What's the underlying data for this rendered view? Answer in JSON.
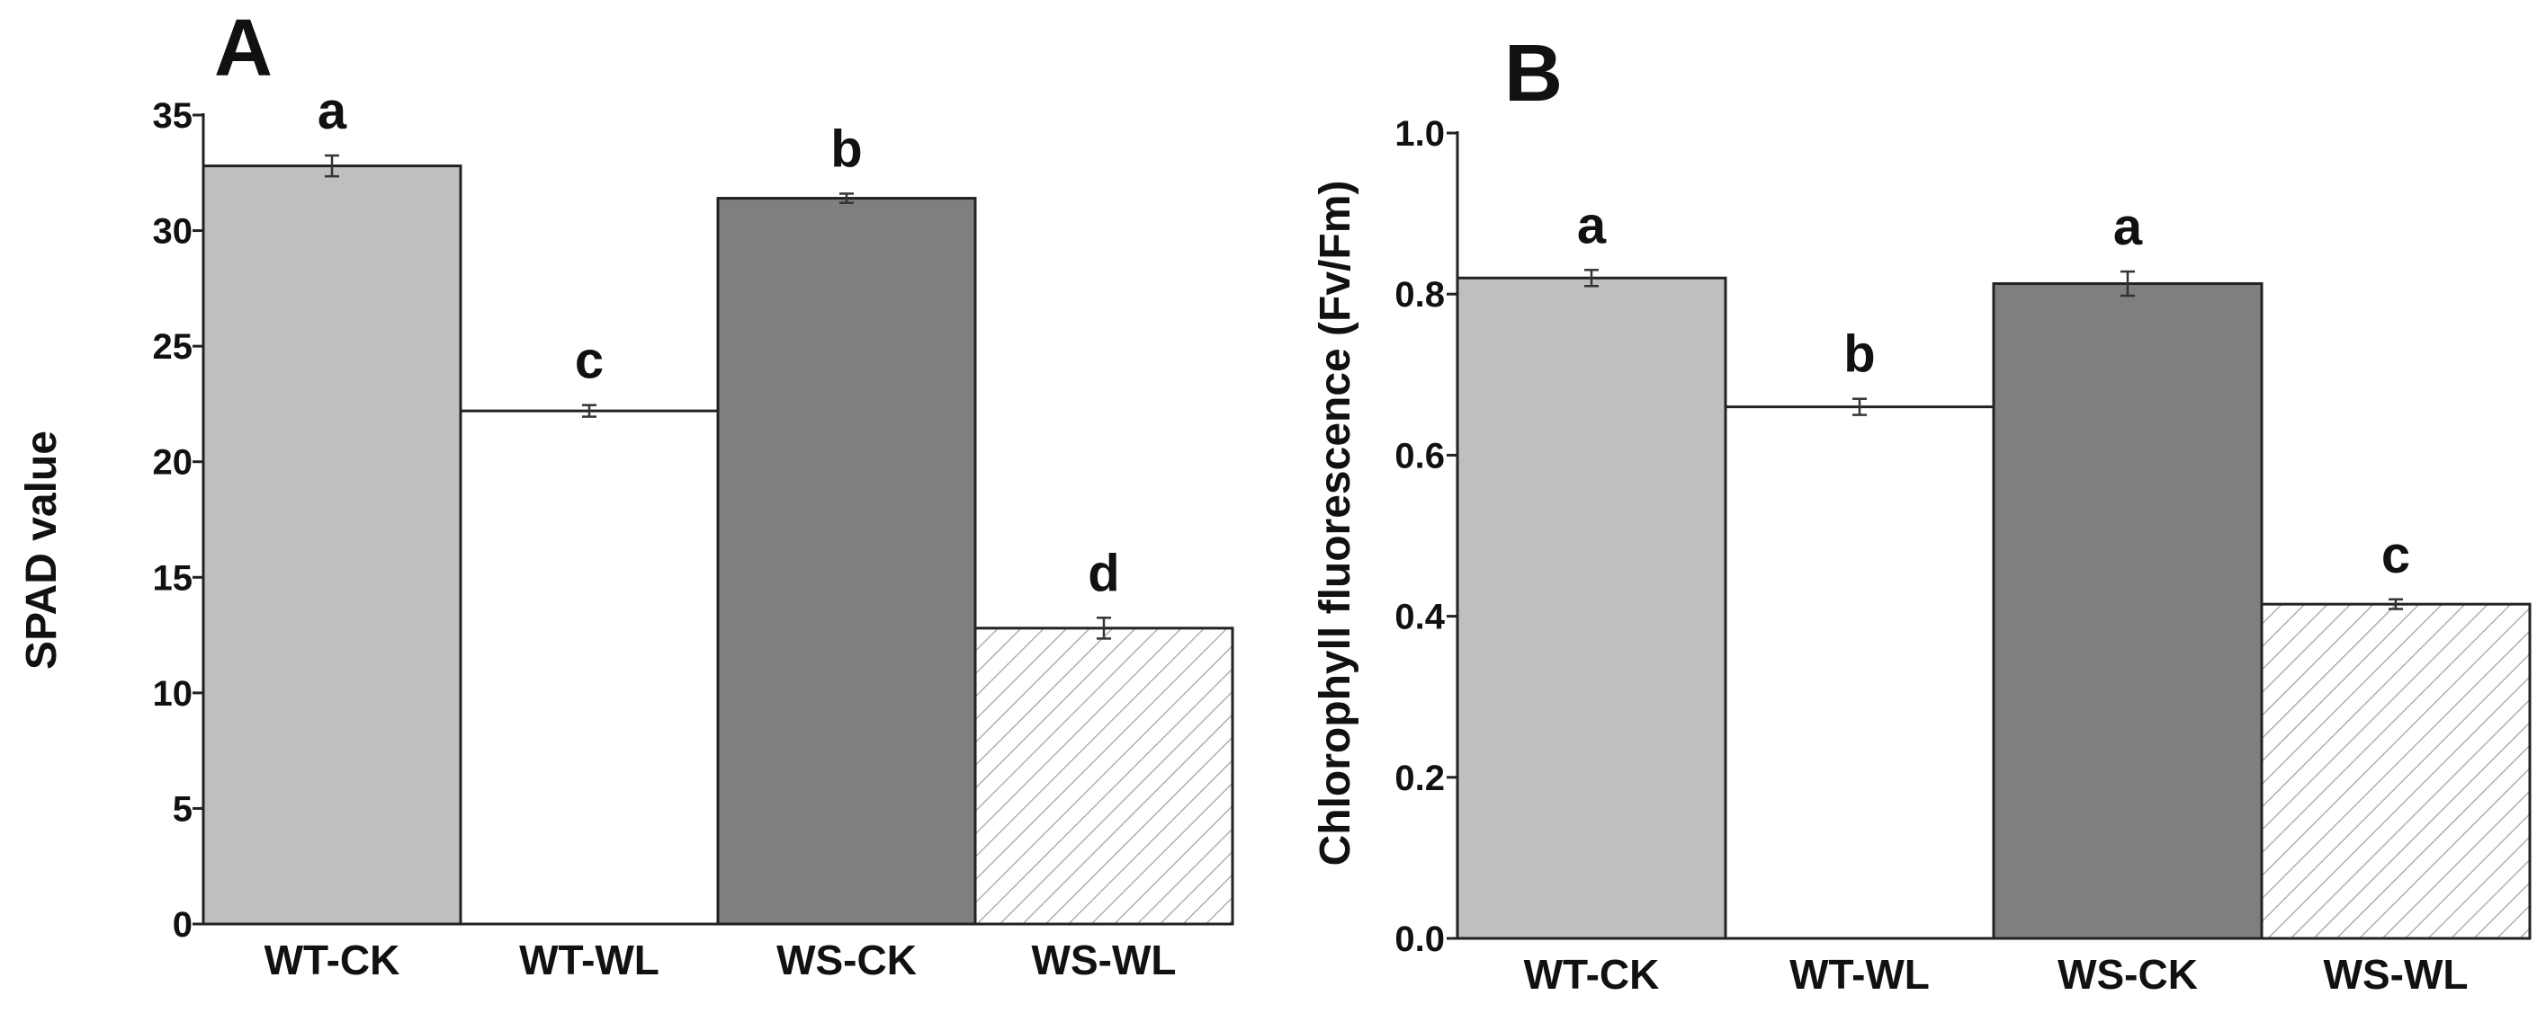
{
  "chart_data": [
    {
      "panel_label": "A",
      "type": "bar",
      "title": "",
      "xlabel": "",
      "ylabel": "SPAD value",
      "categories": [
        "WT-CK",
        "WT-WL",
        "WS-CK",
        "WS-WL"
      ],
      "values": [
        32.8,
        22.2,
        31.4,
        12.8
      ],
      "errors": [
        0.45,
        0.25,
        0.2,
        0.45
      ],
      "significance": [
        "a",
        "c",
        "b",
        "d"
      ],
      "fills": [
        "#bfbfbf",
        "#ffffff",
        "#7f7f7f",
        "hatch"
      ],
      "ylim": [
        0,
        35
      ],
      "yticks": [
        0,
        5,
        10,
        15,
        20,
        25,
        30,
        35
      ],
      "ytick_labels": [
        "0",
        "5",
        "10",
        "15",
        "20",
        "25",
        "30",
        "35"
      ]
    },
    {
      "panel_label": "B",
      "type": "bar",
      "title": "",
      "xlabel": "",
      "ylabel": "Chlorophyll fluorescence (Fv/Fm)",
      "categories": [
        "WT-CK",
        "WT-WL",
        "WS-CK",
        "WS-WL"
      ],
      "values": [
        0.82,
        0.66,
        0.813,
        0.415
      ],
      "errors": [
        0.01,
        0.01,
        0.015,
        0.006
      ],
      "significance": [
        "a",
        "b",
        "a",
        "c"
      ],
      "fills": [
        "#bfbfbf",
        "#ffffff",
        "#7f7f7f",
        "hatch"
      ],
      "ylim": [
        0,
        1.0
      ],
      "yticks": [
        0,
        0.2,
        0.4,
        0.6,
        0.8,
        1.0
      ],
      "ytick_labels": [
        "0.0",
        "0.2",
        "0.4",
        "0.6",
        "0.8",
        "1.0"
      ]
    }
  ]
}
